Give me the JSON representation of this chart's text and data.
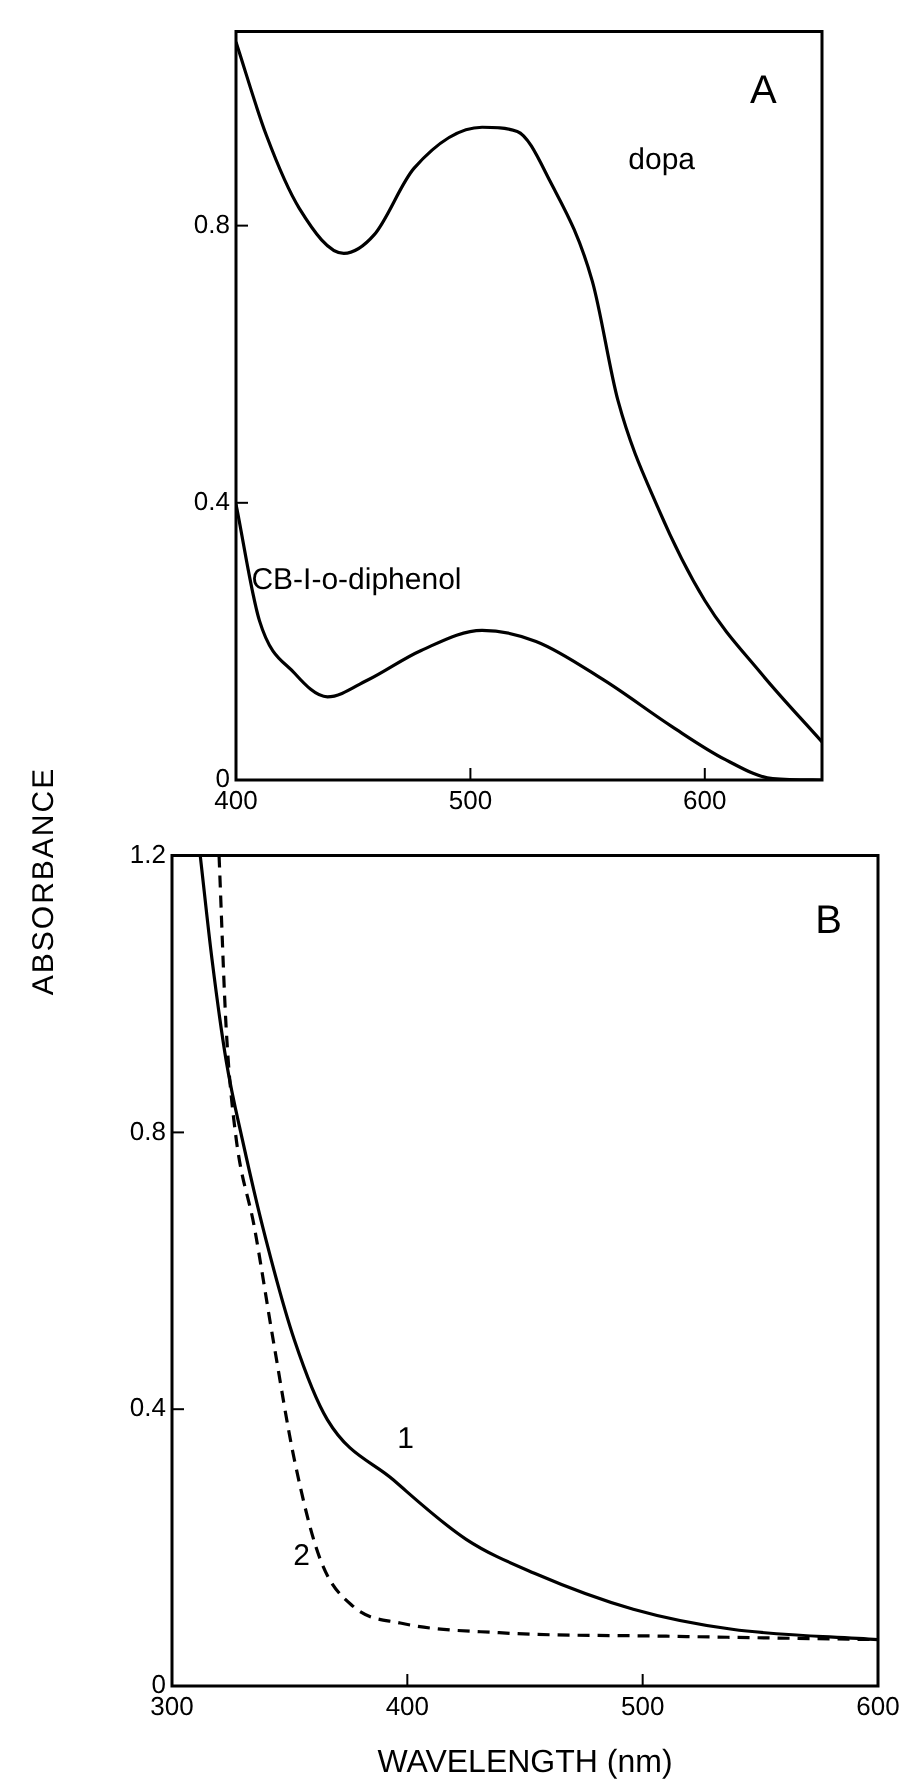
{
  "chart_data": [
    {
      "type": "line",
      "annotations": [
        "A"
      ],
      "xlim": [
        400,
        650
      ],
      "xticks": [
        400,
        500,
        600
      ],
      "ylim": [
        0,
        1.08
      ],
      "yticks": [
        0,
        0.4,
        0.8
      ],
      "grid": false,
      "legend": false,
      "marker": "none",
      "series": [
        {
          "name": "dopa",
          "color": "#000000",
          "line_style": "solid",
          "x": [
            400,
            413,
            427,
            446,
            459,
            476,
            505,
            520,
            534,
            552,
            563,
            580,
            600,
            624,
            650
          ],
          "values": [
            1.065,
            0.93,
            0.825,
            0.76,
            0.787,
            0.883,
            0.942,
            0.936,
            0.864,
            0.72,
            0.547,
            0.393,
            0.259,
            0.154,
            0.055
          ]
        },
        {
          "name": "CB-I-o-diphenol",
          "color": "#000000",
          "line_style": "solid",
          "x": [
            400,
            410,
            425,
            439,
            456,
            479,
            505,
            528,
            557,
            586,
            609,
            629,
            650
          ],
          "values": [
            0.398,
            0.23,
            0.154,
            0.12,
            0.144,
            0.187,
            0.216,
            0.2,
            0.144,
            0.077,
            0.029,
            0.002,
            0
          ]
        }
      ]
    },
    {
      "type": "line",
      "annotations": [
        "B"
      ],
      "xlabel": "WAVELENGTH (nm)",
      "ylabel": "ABSORBANCE",
      "xlim": [
        300,
        600
      ],
      "xticks": [
        300,
        400,
        500,
        600
      ],
      "ylim": [
        0,
        1.2
      ],
      "yticks": [
        0,
        0.4,
        0.8,
        1.2
      ],
      "grid": false,
      "legend": false,
      "marker": "none",
      "series": [
        {
          "name": "1",
          "color": "#000000",
          "line_style": "solid",
          "x": [
            312,
            317,
            323,
            330,
            340,
            352,
            366,
            394,
            425,
            454,
            496,
            538,
            600
          ],
          "values": [
            1.2,
            1.05,
            0.904,
            0.788,
            0.644,
            0.5,
            0.385,
            0.298,
            0.212,
            0.163,
            0.111,
            0.082,
            0.067
          ]
        },
        {
          "name": "2",
          "color": "#000000",
          "line_style": "dashed",
          "x": [
            320,
            323,
            327,
            335,
            343,
            352,
            363,
            377,
            397,
            439,
            510,
            600
          ],
          "values": [
            1.2,
            0.952,
            0.798,
            0.663,
            0.5,
            0.327,
            0.183,
            0.115,
            0.091,
            0.077,
            0.072,
            0.067
          ]
        }
      ]
    }
  ]
}
